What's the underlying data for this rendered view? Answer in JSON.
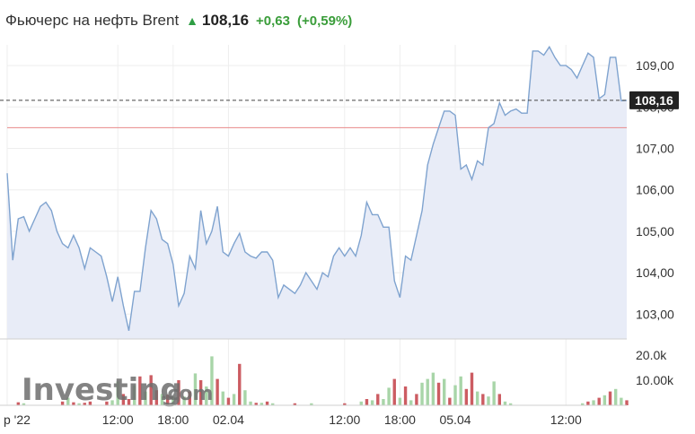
{
  "header": {
    "title": "Фьючерс на нефть Brent",
    "arrow_icon": "up-arrow-icon",
    "price": "108,16",
    "change": "+0,63",
    "change_pct": "(+0,59%)",
    "positive_color": "#3a9d3a"
  },
  "watermark": {
    "brand": "Investing",
    "suffix": ".com"
  },
  "chart_data": {
    "type": "line",
    "ylim": [
      102.4,
      109.5
    ],
    "y_ticks": [
      "103,00",
      "104,00",
      "105,00",
      "106,00",
      "107,00",
      "108,00",
      "109,00"
    ],
    "y_tick_values": [
      103,
      104,
      105,
      106,
      107,
      108,
      109
    ],
    "x_ticks": [
      "р '22",
      "12:00",
      "18:00",
      "02.04",
      "12:00",
      "18:00",
      "05.04",
      "12:00"
    ],
    "x_tick_positions": [
      0,
      20,
      30,
      40,
      61,
      71,
      81,
      101
    ],
    "current_price_label": "108,16",
    "current_price": 108.16,
    "reference_level": 107.5,
    "price": [
      106.4,
      104.3,
      105.3,
      105.35,
      105.0,
      105.3,
      105.6,
      105.7,
      105.5,
      105.0,
      104.7,
      104.6,
      104.9,
      104.6,
      104.1,
      104.6,
      104.5,
      104.4,
      103.9,
      103.3,
      103.9,
      103.2,
      102.6,
      103.55,
      103.55,
      104.6,
      105.5,
      105.3,
      104.8,
      104.7,
      104.2,
      103.2,
      103.5,
      104.4,
      104.1,
      105.5,
      104.7,
      105.0,
      105.6,
      104.5,
      104.4,
      104.7,
      104.95,
      104.5,
      104.4,
      104.35,
      104.5,
      104.5,
      104.3,
      103.4,
      103.7,
      103.6,
      103.5,
      103.7,
      104.0,
      103.8,
      103.6,
      104.0,
      103.9,
      104.4,
      104.6,
      104.4,
      104.6,
      104.4,
      104.9,
      105.7,
      105.4,
      105.4,
      105.1,
      105.1,
      103.8,
      103.4,
      104.4,
      104.3,
      104.9,
      105.5,
      106.6,
      107.1,
      107.5,
      107.9,
      107.9,
      107.8,
      106.5,
      106.6,
      106.25,
      106.7,
      106.6,
      107.5,
      107.6,
      108.1,
      107.8,
      107.9,
      107.95,
      107.85,
      107.85,
      109.35,
      109.35,
      109.25,
      109.45,
      109.2,
      109.0,
      109.0,
      108.9,
      108.7,
      109.0,
      109.3,
      109.2,
      108.2,
      108.3,
      109.2,
      109.2,
      108.15,
      108.16
    ],
    "volume_axis": {
      "ylim": [
        0,
        25000
      ],
      "ticks": [
        "20.0k",
        "10.00k"
      ],
      "tick_values": [
        20000,
        10000
      ]
    },
    "volume": [
      0,
      0,
      0,
      0,
      0,
      0,
      0,
      0,
      0,
      0,
      0,
      0,
      0,
      0,
      0,
      0,
      0,
      0,
      0,
      0,
      0,
      0,
      0,
      0,
      0,
      0,
      0,
      0,
      0,
      0,
      0,
      0,
      0,
      0,
      0,
      0,
      0,
      0,
      0,
      0,
      0,
      0,
      0,
      0,
      0,
      0,
      0,
      0,
      0,
      0,
      0,
      0,
      0,
      0,
      0,
      0,
      0,
      0,
      0,
      0,
      0,
      0,
      0,
      0,
      0,
      0,
      0,
      0,
      0,
      0,
      0,
      0,
      0,
      0,
      0,
      0,
      0,
      0,
      0,
      0,
      0,
      0,
      0,
      0,
      0,
      0,
      0,
      0,
      0,
      0,
      0,
      0,
      0,
      0,
      0,
      0,
      0,
      0,
      0,
      0,
      0,
      0,
      0,
      0,
      0,
      0,
      0,
      0,
      0,
      0,
      0,
      0,
      0
    ],
    "volume_bars": [
      {
        "i": 2,
        "v": 1200,
        "up": false
      },
      {
        "i": 3,
        "v": 800,
        "up": true
      },
      {
        "i": 10,
        "v": 1500,
        "up": false
      },
      {
        "i": 11,
        "v": 3000,
        "up": true
      },
      {
        "i": 12,
        "v": 1200,
        "up": false
      },
      {
        "i": 13,
        "v": 800,
        "up": true
      },
      {
        "i": 14,
        "v": 1000,
        "up": false
      },
      {
        "i": 15,
        "v": 1500,
        "up": false
      },
      {
        "i": 18,
        "v": 1500,
        "up": false
      },
      {
        "i": 19,
        "v": 2000,
        "up": true
      },
      {
        "i": 20,
        "v": 9500,
        "up": true
      },
      {
        "i": 21,
        "v": 4500,
        "up": false
      },
      {
        "i": 22,
        "v": 2500,
        "up": false
      },
      {
        "i": 23,
        "v": 8000,
        "up": true
      },
      {
        "i": 24,
        "v": 11500,
        "up": false
      },
      {
        "i": 25,
        "v": 5500,
        "up": true
      },
      {
        "i": 26,
        "v": 12000,
        "up": false
      },
      {
        "i": 27,
        "v": 6000,
        "up": false
      },
      {
        "i": 28,
        "v": 4500,
        "up": true
      },
      {
        "i": 29,
        "v": 4200,
        "up": false
      },
      {
        "i": 30,
        "v": 3500,
        "up": true
      },
      {
        "i": 31,
        "v": 10000,
        "up": false
      },
      {
        "i": 32,
        "v": 3500,
        "up": true
      },
      {
        "i": 33,
        "v": 5500,
        "up": false
      },
      {
        "i": 34,
        "v": 12700,
        "up": true
      },
      {
        "i": 35,
        "v": 10000,
        "up": false
      },
      {
        "i": 36,
        "v": 7500,
        "up": true
      },
      {
        "i": 37,
        "v": 19500,
        "up": true
      },
      {
        "i": 38,
        "v": 10500,
        "up": false
      },
      {
        "i": 39,
        "v": 5500,
        "up": true
      },
      {
        "i": 40,
        "v": 3000,
        "up": false
      },
      {
        "i": 41,
        "v": 4500,
        "up": true
      },
      {
        "i": 42,
        "v": 16500,
        "up": false
      },
      {
        "i": 43,
        "v": 6000,
        "up": true
      },
      {
        "i": 44,
        "v": 1500,
        "up": true
      },
      {
        "i": 45,
        "v": 1000,
        "up": false
      },
      {
        "i": 46,
        "v": 1000,
        "up": true
      },
      {
        "i": 47,
        "v": 1500,
        "up": false
      },
      {
        "i": 48,
        "v": 800,
        "up": true
      },
      {
        "i": 52,
        "v": 800,
        "up": false
      },
      {
        "i": 55,
        "v": 800,
        "up": true
      },
      {
        "i": 61,
        "v": 800,
        "up": false
      },
      {
        "i": 64,
        "v": 1500,
        "up": true
      },
      {
        "i": 65,
        "v": 2500,
        "up": false
      },
      {
        "i": 66,
        "v": 2000,
        "up": true
      },
      {
        "i": 67,
        "v": 4500,
        "up": false
      },
      {
        "i": 68,
        "v": 2500,
        "up": true
      },
      {
        "i": 69,
        "v": 7000,
        "up": true
      },
      {
        "i": 70,
        "v": 10500,
        "up": false
      },
      {
        "i": 71,
        "v": 3000,
        "up": true
      },
      {
        "i": 72,
        "v": 7500,
        "up": false
      },
      {
        "i": 73,
        "v": 2000,
        "up": true
      },
      {
        "i": 74,
        "v": 4500,
        "up": false
      },
      {
        "i": 75,
        "v": 9000,
        "up": true
      },
      {
        "i": 76,
        "v": 10500,
        "up": true
      },
      {
        "i": 77,
        "v": 13000,
        "up": true
      },
      {
        "i": 78,
        "v": 9000,
        "up": false
      },
      {
        "i": 79,
        "v": 10500,
        "up": true
      },
      {
        "i": 80,
        "v": 3000,
        "up": false
      },
      {
        "i": 81,
        "v": 8000,
        "up": true
      },
      {
        "i": 82,
        "v": 11500,
        "up": true
      },
      {
        "i": 83,
        "v": 6500,
        "up": false
      },
      {
        "i": 84,
        "v": 13000,
        "up": false
      },
      {
        "i": 85,
        "v": 5500,
        "up": true
      },
      {
        "i": 86,
        "v": 4500,
        "up": false
      },
      {
        "i": 87,
        "v": 3500,
        "up": true
      },
      {
        "i": 88,
        "v": 9500,
        "up": true
      },
      {
        "i": 89,
        "v": 4500,
        "up": false
      },
      {
        "i": 90,
        "v": 1500,
        "up": true
      },
      {
        "i": 91,
        "v": 800,
        "up": true
      },
      {
        "i": 104,
        "v": 800,
        "up": true
      },
      {
        "i": 105,
        "v": 1500,
        "up": false
      },
      {
        "i": 106,
        "v": 2000,
        "up": true
      },
      {
        "i": 107,
        "v": 3000,
        "up": false
      },
      {
        "i": 108,
        "v": 4000,
        "up": true
      },
      {
        "i": 109,
        "v": 5500,
        "up": false
      },
      {
        "i": 110,
        "v": 6500,
        "up": true
      },
      {
        "i": 111,
        "v": 3000,
        "up": true
      },
      {
        "i": 112,
        "v": 2000,
        "up": false
      }
    ],
    "colors": {
      "line": "#7fa3cf",
      "fill": "#e8ecf7",
      "reference_line": "#e88a8a",
      "volume_up": "#a8d5a8",
      "volume_down": "#cc5c62",
      "grid": "#eeeeee"
    }
  }
}
